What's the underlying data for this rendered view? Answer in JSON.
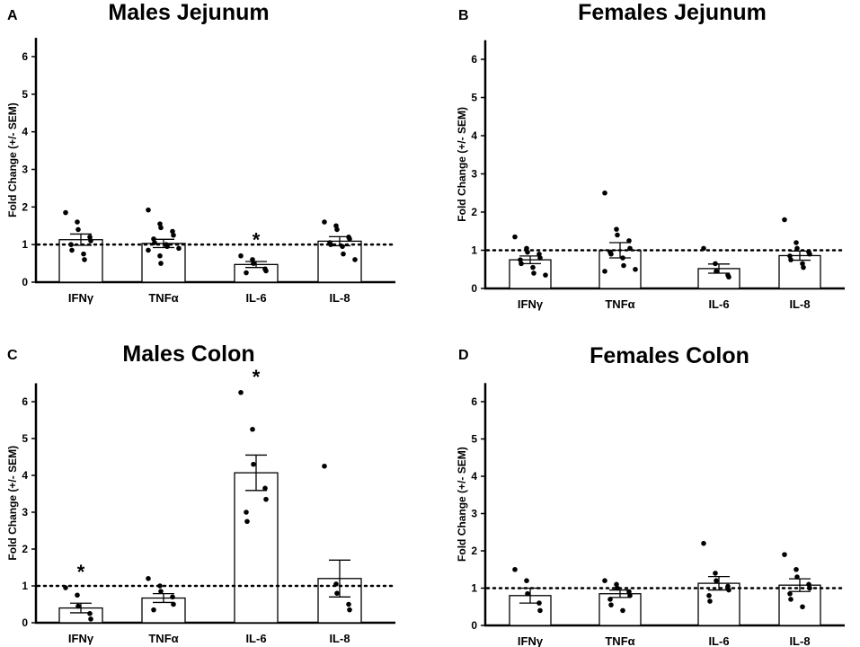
{
  "chart_data": [
    {
      "panel_label": "A",
      "type": "bar",
      "title": "Males Jejunum",
      "ylabel": "Fold Change (+/- SEM)",
      "xlabel": "",
      "ylim": [
        0,
        6.5
      ],
      "yticks": [
        "0",
        "1",
        "2",
        "3",
        "4",
        "5",
        "6"
      ],
      "reference_line": 1,
      "categories": [
        "IFNγ",
        "TNFα",
        "IL-6",
        "IL-8"
      ],
      "values": [
        1.13,
        1.03,
        0.47,
        1.09
      ],
      "sem": [
        0.15,
        0.11,
        0.08,
        0.12
      ],
      "significance": [
        "",
        "",
        "*",
        ""
      ],
      "points": [
        [
          1.85,
          1.6,
          1.4,
          1.2,
          1.1,
          1.0,
          0.85,
          0.75,
          0.6
        ],
        [
          1.92,
          1.55,
          1.45,
          1.35,
          1.25,
          1.15,
          1.05,
          1.0,
          0.95,
          0.9,
          0.85,
          0.7,
          0.5
        ],
        [
          0.7,
          0.6,
          0.5,
          0.35,
          0.3,
          0.25
        ],
        [
          1.6,
          1.5,
          1.4,
          1.2,
          1.15,
          1.05,
          1.0,
          0.95,
          0.75,
          0.6
        ]
      ]
    },
    {
      "panel_label": "B",
      "type": "bar",
      "title": "Females Jejunum",
      "ylabel": "Fold Change (+/- SEM)",
      "xlabel": "",
      "ylim": [
        0,
        6.5
      ],
      "yticks": [
        "0",
        "1",
        "2",
        "3",
        "4",
        "5",
        "6"
      ],
      "reference_line": 1,
      "categories": [
        "IFNγ",
        "TNFα",
        "IL-6",
        "IL-8"
      ],
      "values": [
        0.75,
        1.0,
        0.52,
        0.86
      ],
      "sem": [
        0.1,
        0.2,
        0.12,
        0.12
      ],
      "significance": [
        "",
        "",
        "",
        ""
      ],
      "points": [
        [
          1.35,
          1.05,
          0.95,
          0.9,
          0.8,
          0.75,
          0.65,
          0.55,
          0.4,
          0.35
        ],
        [
          2.5,
          1.55,
          1.4,
          1.25,
          1.05,
          0.95,
          0.9,
          0.8,
          0.6,
          0.5,
          0.45
        ],
        [
          1.05,
          0.65,
          0.45,
          0.35,
          0.3
        ],
        [
          1.8,
          1.2,
          1.05,
          0.95,
          0.9,
          0.85,
          0.75,
          0.65,
          0.55
        ]
      ]
    },
    {
      "panel_label": "C",
      "type": "bar",
      "title": "Males Colon",
      "ylabel": "Fold Change (+/- SEM)",
      "xlabel": "",
      "ylim": [
        0,
        6.5
      ],
      "yticks": [
        "0",
        "1",
        "2",
        "3",
        "4",
        "5",
        "6"
      ],
      "reference_line": 1,
      "categories": [
        "IFNγ",
        "TNFα",
        "IL-6",
        "IL-8"
      ],
      "values": [
        0.4,
        0.67,
        4.07,
        1.2
      ],
      "sem": [
        0.13,
        0.12,
        0.48,
        0.5
      ],
      "significance": [
        "*",
        "",
        "*",
        ""
      ],
      "points": [
        [
          0.95,
          0.75,
          0.45,
          0.25,
          0.1
        ],
        [
          1.2,
          1.0,
          0.85,
          0.7,
          0.5,
          0.35
        ],
        [
          6.25,
          5.25,
          4.3,
          3.65,
          3.35,
          3.0,
          2.75
        ],
        [
          4.25,
          1.05,
          0.8,
          0.5,
          0.35
        ]
      ]
    },
    {
      "panel_label": "D",
      "type": "bar",
      "title": "Females Colon",
      "ylabel": "Fold Change (+/- SEM)",
      "xlabel": "",
      "ylim": [
        0,
        6.5
      ],
      "yticks": [
        "0",
        "1",
        "2",
        "3",
        "4",
        "5",
        "6"
      ],
      "reference_line": 1,
      "categories": [
        "IFNγ",
        "TNFα",
        "IL-6",
        "IL-8"
      ],
      "values": [
        0.8,
        0.85,
        1.13,
        1.08
      ],
      "sem": [
        0.2,
        0.1,
        0.18,
        0.17
      ],
      "significance": [
        "",
        "",
        "",
        ""
      ],
      "points": [
        [
          1.5,
          1.2,
          0.85,
          0.6,
          0.4
        ],
        [
          1.2,
          1.1,
          1.0,
          0.9,
          0.8,
          0.7,
          0.55,
          0.4
        ],
        [
          2.2,
          1.4,
          1.2,
          1.05,
          0.95,
          0.8,
          0.65
        ],
        [
          1.9,
          1.5,
          1.3,
          1.1,
          1.0,
          0.85,
          0.7,
          0.5
        ]
      ]
    }
  ]
}
